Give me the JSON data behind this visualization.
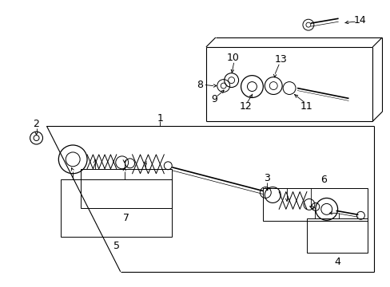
{
  "bg_color": "#ffffff",
  "line_color": "#000000",
  "fig_width": 4.89,
  "fig_height": 3.6,
  "dpi": 100,
  "label_fontsize": 9
}
